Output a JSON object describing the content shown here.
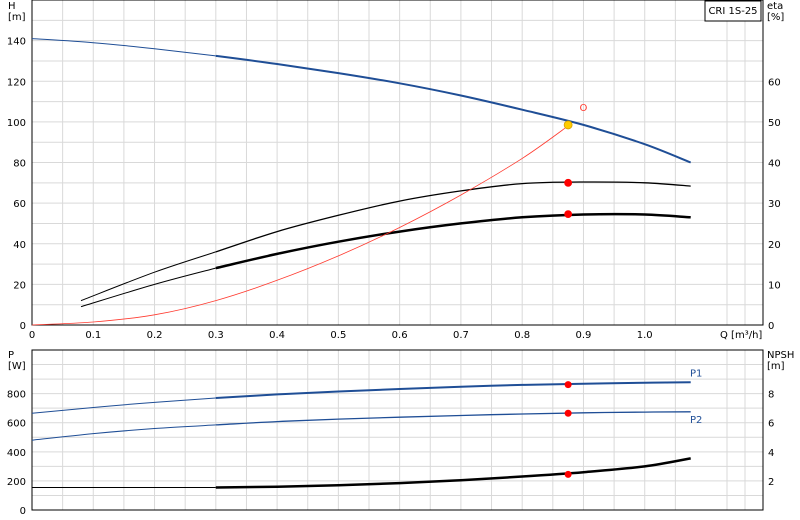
{
  "chart_data": [
    {
      "type": "line",
      "title": "CRI 1S-25",
      "xlabel": "Q [m³/h]",
      "ylabel": "H\n[m]",
      "y2label": "eta\n[%]",
      "xlim": [
        0,
        1.1
      ],
      "ylim": [
        0,
        160
      ],
      "y2lim": [
        0,
        80
      ],
      "grid": true,
      "x_ticks": [
        "0",
        "0.1",
        "0.2",
        "0.3",
        "0.4",
        "0.5",
        "0.6",
        "0.7",
        "0.8",
        "0.9",
        "1.0"
      ],
      "y_ticks": [
        "0",
        "20",
        "40",
        "60",
        "80",
        "100",
        "120",
        "140"
      ],
      "y2_ticks": [
        "0",
        "10",
        "20",
        "30",
        "40",
        "50",
        "60"
      ],
      "series": [
        {
          "name": "",
          "axis": "y",
          "color": "#1f4e96",
          "x": [
            0,
            0.1,
            0.2,
            0.3,
            0.4,
            0.5,
            0.6,
            0.7,
            0.8,
            0.9,
            1.0,
            1.075
          ],
          "y": [
            141,
            139,
            136,
            132.5,
            128.5,
            124,
            119,
            113,
            106,
            98.5,
            89,
            80
          ]
        },
        {
          "name": "",
          "axis": "y2",
          "color": "#000000",
          "x": [
            0.08,
            0.2,
            0.3,
            0.4,
            0.5,
            0.6,
            0.7,
            0.8,
            0.9,
            1.0,
            1.075
          ],
          "y": [
            6,
            13,
            18,
            23,
            27,
            30.5,
            33,
            34.8,
            35.2,
            35,
            34.2
          ]
        },
        {
          "name": "",
          "axis": "y2",
          "color": "#000000",
          "x": [
            0.08,
            0.2,
            0.3,
            0.4,
            0.5,
            0.6,
            0.7,
            0.8,
            0.9,
            1.0,
            1.075
          ],
          "y": [
            4.5,
            10,
            14,
            17.5,
            20.5,
            23,
            25,
            26.5,
            27.2,
            27.2,
            26.5
          ]
        },
        {
          "name": "",
          "axis": "y",
          "color": "#ff3b30",
          "x": [
            0,
            0.1,
            0.2,
            0.3,
            0.4,
            0.5,
            0.6,
            0.7,
            0.8,
            0.875
          ],
          "y": [
            0,
            1.5,
            5,
            12,
            22,
            34,
            48,
            64,
            82,
            98
          ]
        }
      ],
      "points": [
        {
          "x": 0.875,
          "y": 98.5,
          "axis": "y",
          "color": "#ffcc00"
        },
        {
          "x": 0.875,
          "y": 35,
          "axis": "y2",
          "color": "#ff0000"
        },
        {
          "x": 0.875,
          "y": 27.3,
          "axis": "y2",
          "color": "#ff0000"
        }
      ],
      "annotations": [
        {
          "text": "O",
          "x": 0.9,
          "y": 104,
          "color": "#ff3b30"
        }
      ]
    },
    {
      "type": "line",
      "xlim": [
        0,
        1.1
      ],
      "ylim": [
        0,
        1100
      ],
      "y2lim": [
        0,
        11
      ],
      "ylabel": "P\n[W]",
      "y2label": "NPSH\n[m]",
      "grid": true,
      "y_ticks": [
        "0",
        "200",
        "400",
        "600",
        "800"
      ],
      "y2_ticks": [
        "2",
        "4",
        "6",
        "8"
      ],
      "series": [
        {
          "name": "P1",
          "axis": "y",
          "color": "#1f4e96",
          "x": [
            0,
            0.1,
            0.2,
            0.3,
            0.4,
            0.5,
            0.6,
            0.7,
            0.8,
            0.9,
            1.0,
            1.075
          ],
          "y": [
            665,
            705,
            740,
            770,
            795,
            815,
            832,
            848,
            860,
            868,
            875,
            878
          ]
        },
        {
          "name": "P2",
          "axis": "y",
          "color": "#1f4e96",
          "x": [
            0,
            0.1,
            0.2,
            0.3,
            0.4,
            0.5,
            0.6,
            0.7,
            0.8,
            0.9,
            1.0,
            1.075
          ],
          "y": [
            480,
            525,
            560,
            585,
            608,
            625,
            638,
            650,
            660,
            668,
            673,
            675
          ]
        },
        {
          "name": "",
          "axis": "y2",
          "color": "#000000",
          "x": [
            0,
            0.1,
            0.2,
            0.3,
            0.4,
            0.5,
            0.6,
            0.7,
            0.8,
            0.9,
            1.0,
            1.075
          ],
          "y": [
            1.55,
            1.55,
            1.55,
            1.55,
            1.6,
            1.7,
            1.85,
            2.05,
            2.3,
            2.6,
            3.0,
            3.55
          ]
        }
      ],
      "points": [
        {
          "x": 0.875,
          "y": 862,
          "axis": "y",
          "color": "#ff0000"
        },
        {
          "x": 0.875,
          "y": 665,
          "axis": "y",
          "color": "#ff0000"
        },
        {
          "x": 0.875,
          "y": 2.45,
          "axis": "y2",
          "color": "#ff0000"
        }
      ]
    }
  ]
}
